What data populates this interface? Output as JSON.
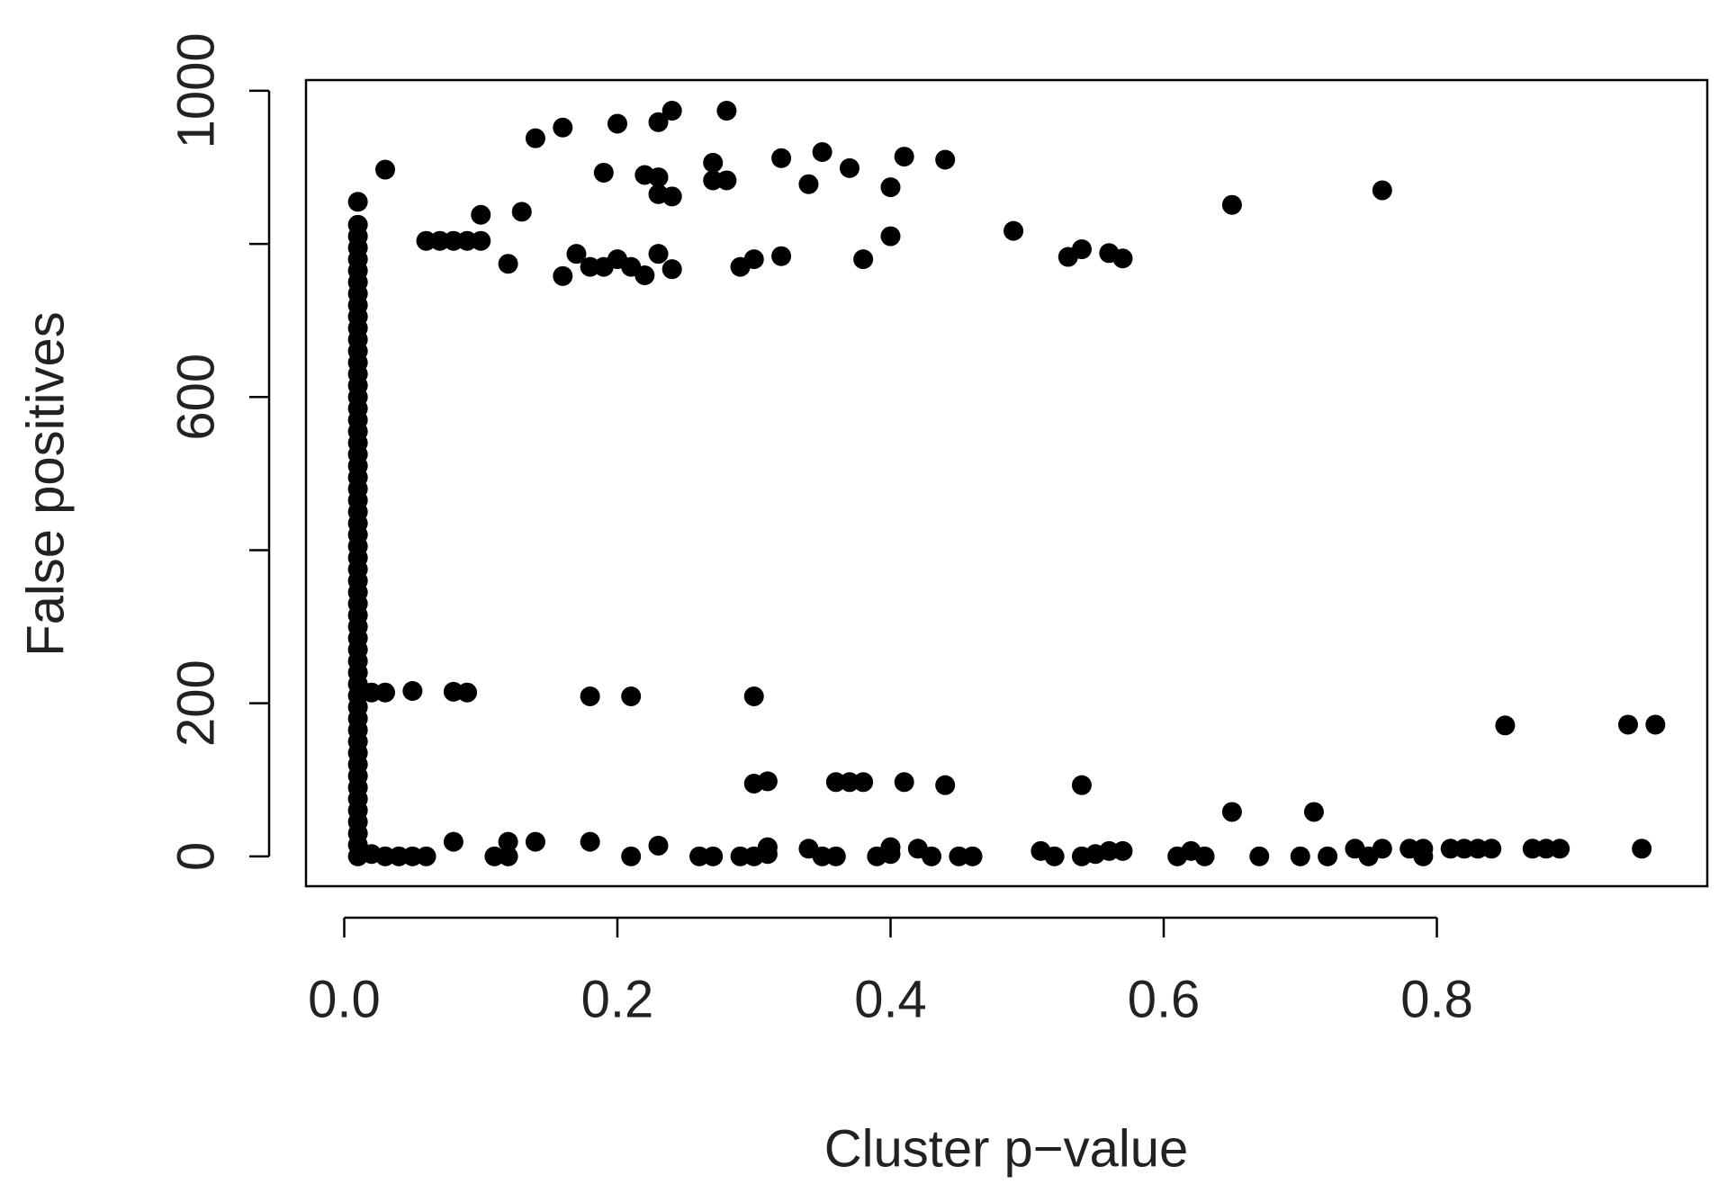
{
  "chart_data": {
    "type": "scatter",
    "xlabel": "Cluster p−value",
    "ylabel": "False positives",
    "color": "#000000",
    "xlim": [
      -0.028,
      0.998
    ],
    "ylim": [
      -39,
      1014
    ],
    "xticks": [
      {
        "value": 0,
        "label": "0.0"
      },
      0.2,
      0.4,
      0.6,
      0.8
    ],
    "yticks": [
      0,
      200,
      {
        "value": 400,
        "label": null
      },
      600,
      {
        "value": 800,
        "label": null
      },
      1000
    ],
    "x": [
      0.01,
      0.01,
      0.01,
      0.01,
      0.01,
      0.01,
      0.01,
      0.01,
      0.01,
      0.01,
      0.01,
      0.01,
      0.01,
      0.01,
      0.01,
      0.01,
      0.01,
      0.01,
      0.01,
      0.01,
      0.01,
      0.01,
      0.01,
      0.01,
      0.01,
      0.01,
      0.01,
      0.01,
      0.01,
      0.01,
      0.01,
      0.01,
      0.01,
      0.01,
      0.01,
      0.01,
      0.01,
      0.01,
      0.01,
      0.01,
      0.01,
      0.01,
      0.01,
      0.01,
      0.01,
      0.01,
      0.01,
      0.01,
      0.01,
      0.01,
      0.01,
      0.01,
      0.01,
      0.01,
      0.01,
      0.01,
      0.01,
      0.03,
      0.06,
      0.07,
      0.08,
      0.09,
      0.1,
      0.1,
      0.12,
      0.13,
      0.14,
      0.16,
      0.16,
      0.17,
      0.18,
      0.19,
      0.2,
      0.21,
      0.22,
      0.23,
      0.24,
      0.19,
      0.2,
      0.22,
      0.23,
      0.23,
      0.24,
      0.23,
      0.24,
      0.27,
      0.27,
      0.28,
      0.28,
      0.29,
      0.3,
      0.32,
      0.32,
      0.34,
      0.35,
      0.37,
      0.38,
      0.4,
      0.4,
      0.41,
      0.44,
      0.49,
      0.53,
      0.54,
      0.56,
      0.57,
      0.65,
      0.76,
      0.02,
      0.03,
      0.05,
      0.08,
      0.09,
      0.18,
      0.21,
      0.3,
      0.3,
      0.31,
      0.36,
      0.37,
      0.38,
      0.41,
      0.44,
      0.54,
      0.65,
      0.71,
      0.85,
      0.94,
      0.96,
      0.02,
      0.03,
      0.04,
      0.05,
      0.06,
      0.08,
      0.11,
      0.12,
      0.12,
      0.14,
      0.18,
      0.21,
      0.23,
      0.26,
      0.27,
      0.29,
      0.3,
      0.31,
      0.31,
      0.34,
      0.35,
      0.36,
      0.39,
      0.4,
      0.4,
      0.42,
      0.43,
      0.45,
      0.46,
      0.51,
      0.52,
      0.54,
      0.55,
      0.56,
      0.57,
      0.61,
      0.62,
      0.63,
      0.67,
      0.7,
      0.72,
      0.74,
      0.75,
      0.76,
      0.78,
      0.79,
      0.79,
      0.81,
      0.82,
      0.83,
      0.84,
      0.87,
      0.88,
      0.89,
      0.95
    ],
    "values": [
      0,
      15,
      30,
      45,
      60,
      75,
      90,
      105,
      120,
      135,
      150,
      165,
      180,
      195,
      210,
      225,
      240,
      255,
      270,
      285,
      300,
      315,
      330,
      345,
      360,
      375,
      390,
      405,
      420,
      435,
      450,
      465,
      480,
      495,
      510,
      525,
      540,
      555,
      570,
      585,
      600,
      615,
      630,
      645,
      660,
      675,
      690,
      705,
      720,
      735,
      750,
      765,
      780,
      795,
      810,
      825,
      855,
      897,
      804,
      804,
      804,
      804,
      804,
      838,
      774,
      842,
      938,
      952,
      758,
      787,
      770,
      770,
      780,
      770,
      759,
      787,
      767,
      893,
      957,
      890,
      887,
      865,
      862,
      959,
      974,
      906,
      883,
      883,
      974,
      770,
      780,
      912,
      784,
      878,
      920,
      899,
      780,
      874,
      810,
      914,
      910,
      817,
      783,
      793,
      788,
      781,
      851,
      870,
      214,
      214,
      216,
      215,
      214,
      209,
      209,
      209,
      95,
      98,
      97,
      97,
      97,
      97,
      93,
      93,
      58,
      58,
      171,
      172,
      172,
      3,
      0,
      0,
      0,
      0,
      19,
      0,
      0,
      19,
      19,
      19,
      0,
      14,
      0,
      0,
      0,
      0,
      3,
      12,
      10,
      0,
      0,
      0,
      3,
      12,
      10,
      0,
      0,
      0,
      7,
      0,
      0,
      3,
      7,
      7,
      0,
      7,
      0,
      0,
      0,
      0,
      10,
      0,
      10,
      10,
      0,
      10,
      10,
      10,
      10,
      10,
      10,
      10,
      10,
      10
    ]
  }
}
